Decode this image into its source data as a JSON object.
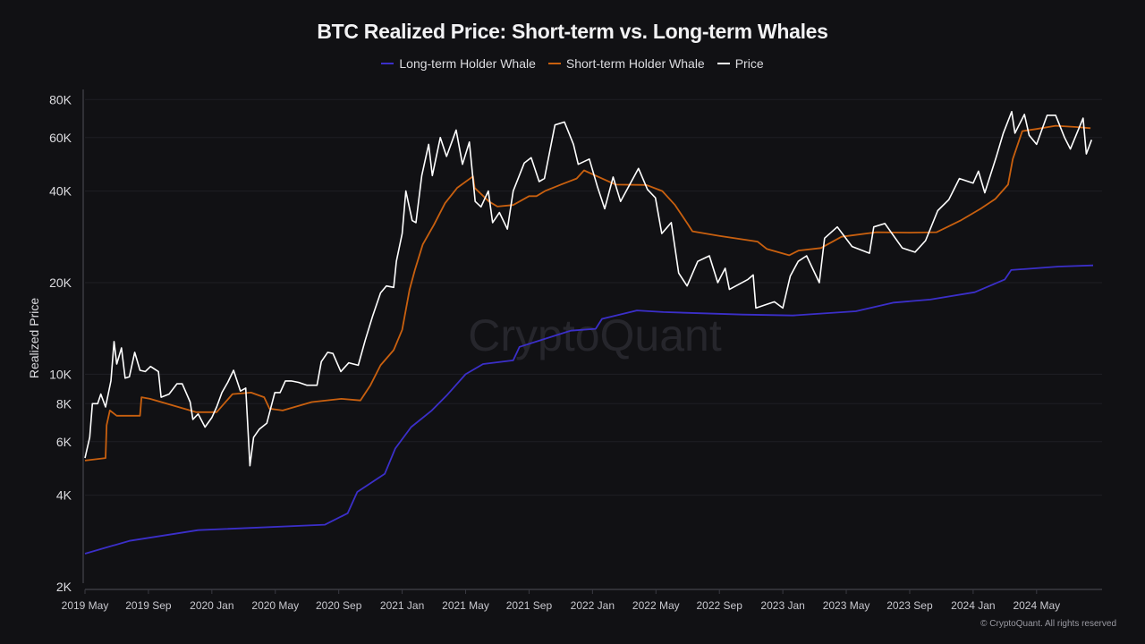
{
  "chart_data": {
    "type": "line",
    "title": "BTC Realized Price: Short-term vs. Long-term Whales",
    "ylabel": "Realized Price",
    "xlabel": "",
    "yscale": "log",
    "ylim": [
      2000,
      85000
    ],
    "xlim": [
      "2019-05-01",
      "2024-09-01"
    ],
    "grid": true,
    "legend_position": "top",
    "ytick_labels": [
      {
        "value": 2000,
        "label": "2K"
      },
      {
        "value": 4000,
        "label": "4K"
      },
      {
        "value": 6000,
        "label": "6K"
      },
      {
        "value": 8000,
        "label": "8K"
      },
      {
        "value": 10000,
        "label": "10K"
      },
      {
        "value": 20000,
        "label": "20K"
      },
      {
        "value": 40000,
        "label": "40K"
      },
      {
        "value": 60000,
        "label": "60K"
      },
      {
        "value": 80000,
        "label": "80K"
      }
    ],
    "xtick_labels": [
      {
        "date": "2019-05-01",
        "label": "2019 May"
      },
      {
        "date": "2019-09-01",
        "label": "2019 Sep"
      },
      {
        "date": "2020-01-01",
        "label": "2020 Jan"
      },
      {
        "date": "2020-05-01",
        "label": "2020 May"
      },
      {
        "date": "2020-09-01",
        "label": "2020 Sep"
      },
      {
        "date": "2021-01-01",
        "label": "2021 Jan"
      },
      {
        "date": "2021-05-01",
        "label": "2021 May"
      },
      {
        "date": "2021-09-01",
        "label": "2021 Sep"
      },
      {
        "date": "2022-01-01",
        "label": "2022 Jan"
      },
      {
        "date": "2022-05-01",
        "label": "2022 May"
      },
      {
        "date": "2022-09-01",
        "label": "2022 Sep"
      },
      {
        "date": "2023-01-01",
        "label": "2023 Jan"
      },
      {
        "date": "2023-05-01",
        "label": "2023 May"
      },
      {
        "date": "2023-09-01",
        "label": "2023 Sep"
      },
      {
        "date": "2024-01-01",
        "label": "2024 Jan"
      },
      {
        "date": "2024-05-01",
        "label": "2024 May"
      }
    ],
    "series": [
      {
        "name": "Long-term Holder Whale",
        "color": "#3b2fc9",
        "points": [
          [
            "2019-05-01",
            2570
          ],
          [
            "2019-07-25",
            2830
          ],
          [
            "2019-12-05",
            3070
          ],
          [
            "2020-08-05",
            3200
          ],
          [
            "2020-09-18",
            3490
          ],
          [
            "2020-10-06",
            4100
          ],
          [
            "2020-11-28",
            4700
          ],
          [
            "2020-12-18",
            5700
          ],
          [
            "2021-01-18",
            6700
          ],
          [
            "2021-02-27",
            7600
          ],
          [
            "2021-03-25",
            8500
          ],
          [
            "2021-05-01",
            10000
          ],
          [
            "2021-06-04",
            10800
          ],
          [
            "2021-08-01",
            11100
          ],
          [
            "2021-08-13",
            12300
          ],
          [
            "2021-11-20",
            13900
          ],
          [
            "2022-01-07",
            14100
          ],
          [
            "2022-01-19",
            15200
          ],
          [
            "2022-03-25",
            16200
          ],
          [
            "2022-05-15",
            16000
          ],
          [
            "2022-10-15",
            15700
          ],
          [
            "2023-01-20",
            15600
          ],
          [
            "2023-05-19",
            16100
          ],
          [
            "2023-08-01",
            17200
          ],
          [
            "2023-10-10",
            17600
          ],
          [
            "2024-01-04",
            18600
          ],
          [
            "2024-03-01",
            20500
          ],
          [
            "2024-03-13",
            22000
          ],
          [
            "2024-06-13",
            22600
          ],
          [
            "2024-08-18",
            22800
          ]
        ]
      },
      {
        "name": "Short-term Holder Whale",
        "color": "#c9600f",
        "points": [
          [
            "2019-05-01",
            5200
          ],
          [
            "2019-06-10",
            5300
          ],
          [
            "2019-06-12",
            6800
          ],
          [
            "2019-06-18",
            7600
          ],
          [
            "2019-07-01",
            7300
          ],
          [
            "2019-08-15",
            7300
          ],
          [
            "2019-08-18",
            8400
          ],
          [
            "2019-09-04",
            8300
          ],
          [
            "2019-12-01",
            7500
          ],
          [
            "2020-01-10",
            7500
          ],
          [
            "2020-02-10",
            8600
          ],
          [
            "2020-03-15",
            8700
          ],
          [
            "2020-04-10",
            8400
          ],
          [
            "2020-04-20",
            7700
          ],
          [
            "2020-05-15",
            7600
          ],
          [
            "2020-07-10",
            8100
          ],
          [
            "2020-09-06",
            8300
          ],
          [
            "2020-10-12",
            8200
          ],
          [
            "2020-11-01",
            9200
          ],
          [
            "2020-11-20",
            10700
          ],
          [
            "2020-12-15",
            12000
          ],
          [
            "2021-01-01",
            14000
          ],
          [
            "2021-01-15",
            19000
          ],
          [
            "2021-01-25",
            22000
          ],
          [
            "2021-02-10",
            26700
          ],
          [
            "2021-03-01",
            31000
          ],
          [
            "2021-03-22",
            36500
          ],
          [
            "2021-04-15",
            41000
          ],
          [
            "2021-05-15",
            44700
          ],
          [
            "2021-05-18",
            41000
          ],
          [
            "2021-06-15",
            37000
          ],
          [
            "2021-07-01",
            35600
          ],
          [
            "2021-08-01",
            36000
          ],
          [
            "2021-09-01",
            38500
          ],
          [
            "2021-09-15",
            38500
          ],
          [
            "2021-10-01",
            40000
          ],
          [
            "2021-11-01",
            42000
          ],
          [
            "2021-12-01",
            44000
          ],
          [
            "2021-12-15",
            46800
          ],
          [
            "2022-01-19",
            44000
          ],
          [
            "2022-02-15",
            42000
          ],
          [
            "2022-04-13",
            41900
          ],
          [
            "2022-05-13",
            40000
          ],
          [
            "2022-06-07",
            36000
          ],
          [
            "2022-07-01",
            31200
          ],
          [
            "2022-07-10",
            29500
          ],
          [
            "2022-09-01",
            28500
          ],
          [
            "2022-11-13",
            27300
          ],
          [
            "2022-12-01",
            25800
          ],
          [
            "2023-01-13",
            24600
          ],
          [
            "2023-02-01",
            25500
          ],
          [
            "2023-03-13",
            26000
          ],
          [
            "2023-04-22",
            28300
          ],
          [
            "2023-06-28",
            29300
          ],
          [
            "2023-09-01",
            29200
          ],
          [
            "2023-10-22",
            29300
          ],
          [
            "2023-12-07",
            32000
          ],
          [
            "2024-01-15",
            35000
          ],
          [
            "2024-02-13",
            37700
          ],
          [
            "2024-03-07",
            42000
          ],
          [
            "2024-03-16",
            51000
          ],
          [
            "2024-04-04",
            63000
          ],
          [
            "2024-05-01",
            64000
          ],
          [
            "2024-06-07",
            65600
          ],
          [
            "2024-07-16",
            65000
          ],
          [
            "2024-08-13",
            64400
          ]
        ]
      },
      {
        "name": "Price",
        "color": "#ffffff",
        "points": [
          [
            "2019-05-01",
            5300
          ],
          [
            "2019-05-10",
            6200
          ],
          [
            "2019-05-15",
            8000
          ],
          [
            "2019-05-25",
            8000
          ],
          [
            "2019-06-01",
            8600
          ],
          [
            "2019-06-10",
            7800
          ],
          [
            "2019-06-20",
            9500
          ],
          [
            "2019-06-26",
            12800
          ],
          [
            "2019-07-01",
            10800
          ],
          [
            "2019-07-10",
            12200
          ],
          [
            "2019-07-17",
            9700
          ],
          [
            "2019-07-25",
            9800
          ],
          [
            "2019-08-05",
            11800
          ],
          [
            "2019-08-15",
            10300
          ],
          [
            "2019-08-25",
            10200
          ],
          [
            "2019-09-05",
            10600
          ],
          [
            "2019-09-20",
            10200
          ],
          [
            "2019-09-25",
            8400
          ],
          [
            "2019-10-10",
            8600
          ],
          [
            "2019-10-25",
            9300
          ],
          [
            "2019-11-05",
            9300
          ],
          [
            "2019-11-20",
            8100
          ],
          [
            "2019-11-25",
            7100
          ],
          [
            "2019-12-05",
            7400
          ],
          [
            "2019-12-18",
            6700
          ],
          [
            "2019-12-31",
            7200
          ],
          [
            "2020-01-10",
            7800
          ],
          [
            "2020-01-20",
            8700
          ],
          [
            "2020-02-01",
            9400
          ],
          [
            "2020-02-12",
            10300
          ],
          [
            "2020-02-25",
            8800
          ],
          [
            "2020-03-05",
            9000
          ],
          [
            "2020-03-13",
            5000
          ],
          [
            "2020-03-20",
            6200
          ],
          [
            "2020-04-01",
            6600
          ],
          [
            "2020-04-15",
            6900
          ],
          [
            "2020-04-30",
            8700
          ],
          [
            "2020-05-10",
            8700
          ],
          [
            "2020-05-20",
            9500
          ],
          [
            "2020-06-01",
            9500
          ],
          [
            "2020-06-15",
            9400
          ],
          [
            "2020-07-01",
            9200
          ],
          [
            "2020-07-20",
            9200
          ],
          [
            "2020-07-28",
            11000
          ],
          [
            "2020-08-10",
            11800
          ],
          [
            "2020-08-20",
            11700
          ],
          [
            "2020-09-05",
            10200
          ],
          [
            "2020-09-20",
            10900
          ],
          [
            "2020-10-08",
            10700
          ],
          [
            "2020-10-21",
            12900
          ],
          [
            "2020-11-05",
            15500
          ],
          [
            "2020-11-20",
            18500
          ],
          [
            "2020-12-01",
            19500
          ],
          [
            "2020-12-15",
            19300
          ],
          [
            "2020-12-20",
            23500
          ],
          [
            "2020-12-31",
            29000
          ],
          [
            "2021-01-08",
            40000
          ],
          [
            "2021-01-20",
            32000
          ],
          [
            "2021-01-27",
            31500
          ],
          [
            "2021-02-08",
            45000
          ],
          [
            "2021-02-21",
            57000
          ],
          [
            "2021-02-28",
            45000
          ],
          [
            "2021-03-13",
            60000
          ],
          [
            "2021-03-25",
            52000
          ],
          [
            "2021-04-13",
            63500
          ],
          [
            "2021-04-25",
            49000
          ],
          [
            "2021-05-08",
            58000
          ],
          [
            "2021-05-19",
            37000
          ],
          [
            "2021-05-30",
            35500
          ],
          [
            "2021-06-14",
            40000
          ],
          [
            "2021-06-22",
            31500
          ],
          [
            "2021-07-05",
            34000
          ],
          [
            "2021-07-20",
            30000
          ],
          [
            "2021-08-01",
            40000
          ],
          [
            "2021-08-22",
            49500
          ],
          [
            "2021-09-05",
            51500
          ],
          [
            "2021-09-20",
            43000
          ],
          [
            "2021-09-30",
            44000
          ],
          [
            "2021-10-20",
            66000
          ],
          [
            "2021-11-08",
            67500
          ],
          [
            "2021-11-25",
            57000
          ],
          [
            "2021-12-04",
            49000
          ],
          [
            "2021-12-25",
            51000
          ],
          [
            "2022-01-10",
            41500
          ],
          [
            "2022-01-24",
            35000
          ],
          [
            "2022-02-10",
            44500
          ],
          [
            "2022-02-24",
            37000
          ],
          [
            "2022-03-28",
            47500
          ],
          [
            "2022-04-15",
            40500
          ],
          [
            "2022-04-30",
            38000
          ],
          [
            "2022-05-12",
            29000
          ],
          [
            "2022-05-30",
            31500
          ],
          [
            "2022-06-14",
            21500
          ],
          [
            "2022-06-30",
            19500
          ],
          [
            "2022-07-20",
            23500
          ],
          [
            "2022-08-12",
            24500
          ],
          [
            "2022-08-28",
            20000
          ],
          [
            "2022-09-12",
            22300
          ],
          [
            "2022-09-20",
            19000
          ],
          [
            "2022-10-25",
            20500
          ],
          [
            "2022-11-05",
            21200
          ],
          [
            "2022-11-10",
            16500
          ],
          [
            "2022-12-15",
            17300
          ],
          [
            "2022-12-31",
            16500
          ],
          [
            "2023-01-15",
            21000
          ],
          [
            "2023-01-30",
            23500
          ],
          [
            "2023-02-16",
            24500
          ],
          [
            "2023-03-10",
            20000
          ],
          [
            "2023-03-20",
            28000
          ],
          [
            "2023-04-14",
            30500
          ],
          [
            "2023-05-12",
            26300
          ],
          [
            "2023-06-15",
            25000
          ],
          [
            "2023-06-23",
            30500
          ],
          [
            "2023-07-14",
            31300
          ],
          [
            "2023-08-17",
            26000
          ],
          [
            "2023-09-11",
            25200
          ],
          [
            "2023-10-01",
            27500
          ],
          [
            "2023-10-24",
            34500
          ],
          [
            "2023-11-15",
            37500
          ],
          [
            "2023-12-05",
            44000
          ],
          [
            "2023-12-31",
            42500
          ],
          [
            "2024-01-11",
            46500
          ],
          [
            "2024-01-23",
            39500
          ],
          [
            "2024-02-15",
            52000
          ],
          [
            "2024-02-28",
            62000
          ],
          [
            "2024-03-14",
            73000
          ],
          [
            "2024-03-20",
            62000
          ],
          [
            "2024-04-08",
            71500
          ],
          [
            "2024-04-17",
            61000
          ],
          [
            "2024-05-01",
            57000
          ],
          [
            "2024-05-21",
            71000
          ],
          [
            "2024-06-07",
            71000
          ],
          [
            "2024-06-24",
            60000
          ],
          [
            "2024-07-05",
            55000
          ],
          [
            "2024-07-29",
            69500
          ],
          [
            "2024-08-05",
            53000
          ],
          [
            "2024-08-15",
            59000
          ]
        ]
      }
    ]
  },
  "watermark": "CryptoQuant",
  "copyright": "© CryptoQuant. All rights reserved"
}
